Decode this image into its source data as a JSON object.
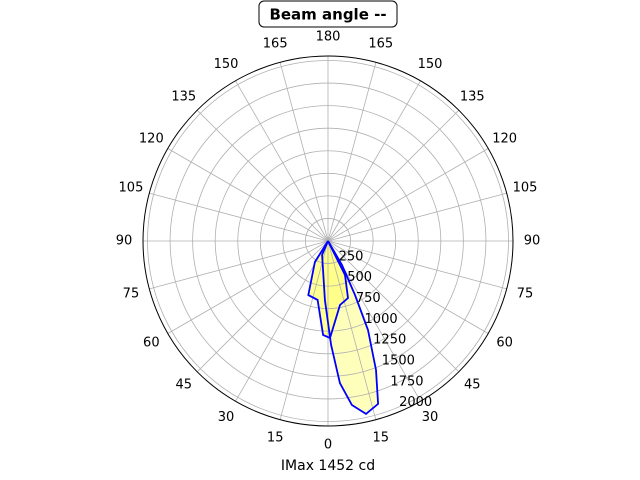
{
  "chart_data": {
    "type": "polar",
    "title": "Beam angle --",
    "xlabel": "IMax 1452 cd",
    "theta_zero": "bottom",
    "rlim": [
      0,
      2050
    ],
    "rticks": [
      250,
      500,
      750,
      1000,
      1250,
      1500,
      1750,
      2000
    ],
    "thetaticks": [
      0,
      15,
      30,
      45,
      60,
      75,
      90,
      105,
      120,
      135,
      150,
      165,
      180,
      {
        "value": 195,
        "label": "165"
      },
      {
        "value": 210,
        "label": "150"
      },
      {
        "value": 225,
        "label": "135"
      },
      {
        "value": 240,
        "label": "120"
      },
      {
        "value": 255,
        "label": "105"
      },
      {
        "value": 270,
        "label": "90"
      },
      {
        "value": 285,
        "label": "75"
      },
      {
        "value": 300,
        "label": "60"
      },
      {
        "value": 315,
        "label": "45"
      },
      {
        "value": 330,
        "label": "30"
      },
      {
        "value": 345,
        "label": "15"
      }
    ],
    "grid": true,
    "series": [
      {
        "color": "#0000ff",
        "fill": "#ffffb0",
        "theta": [
          0,
          337,
          357,
          1.7,
          4.8,
          8.3,
          12.4,
          17.1,
          20.4,
          24.2,
          26.6,
          30.3,
          0
        ],
        "values": [
          0,
          166,
          655,
          1153,
          1579,
          1836,
          1962,
          1889,
          1525,
          1081,
          669,
          308,
          0
        ]
      },
      {
        "color": "#0000ff",
        "fill": "#ffff80",
        "theta": [
          0,
          328,
          340,
          350,
          357,
          1.2,
          10.6,
          19.3,
          26.6,
          0
        ],
        "values": [
          0,
          274,
          638,
          663,
          1043,
          1075,
          721,
          669,
          421,
          0
        ]
      }
    ]
  }
}
